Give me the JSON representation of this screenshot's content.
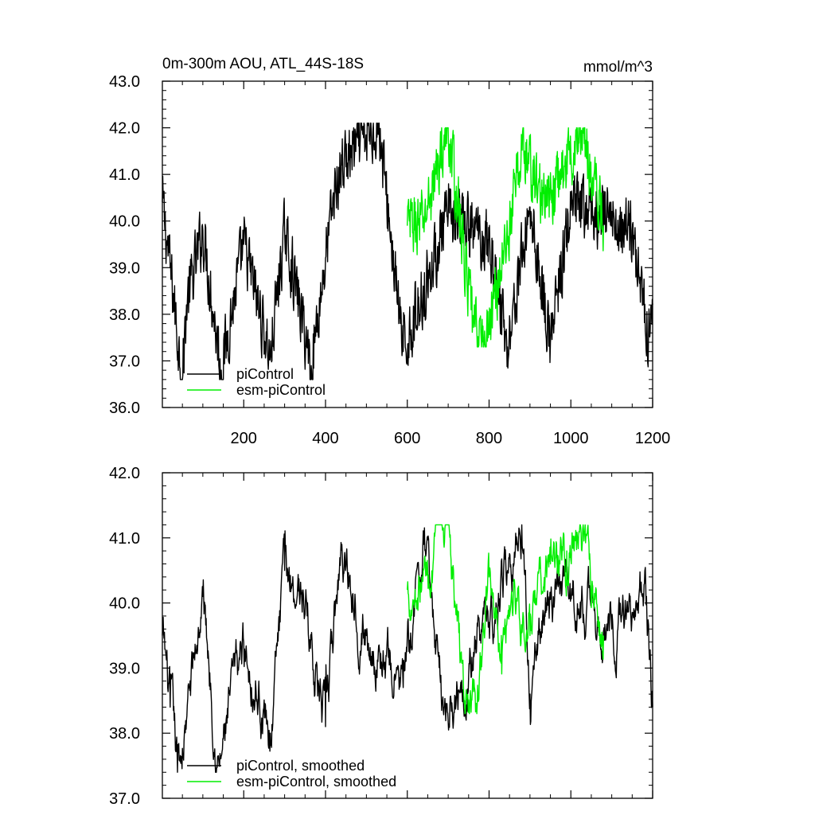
{
  "chart_data": [
    {
      "type": "line",
      "title": "0m-300m AOU, ATL_44S-18S",
      "units": "mmol/m^3",
      "xlim": [
        1,
        1200
      ],
      "ylim": [
        36.0,
        43.0
      ],
      "x_ticks": [
        200,
        400,
        600,
        800,
        1000,
        1200
      ],
      "x_tick_labels": [
        "200",
        "400",
        "600",
        "800",
        "1000",
        "1200"
      ],
      "y_ticks": [
        36.0,
        37.0,
        38.0,
        39.0,
        40.0,
        41.0,
        42.0,
        43.0
      ],
      "y_tick_labels": [
        "36.0",
        "37.0",
        "38.0",
        "39.0",
        "40.0",
        "41.0",
        "42.0",
        "43.0"
      ],
      "legend_position": "bottom-left",
      "series": [
        {
          "name": "piControl",
          "color": "#000000",
          "x_start": 1,
          "x_end": 1200,
          "mean": 39.65,
          "min": 36.6,
          "max": 42.1,
          "anchors": [
            [
              1,
              40.4
            ],
            [
              20,
              39.0
            ],
            [
              50,
              36.6
            ],
            [
              60,
              38.2
            ],
            [
              100,
              39.8
            ],
            [
              145,
              36.8
            ],
            [
              200,
              39.5
            ],
            [
              265,
              37.1
            ],
            [
              300,
              39.8
            ],
            [
              365,
              36.9
            ],
            [
              420,
              40.5
            ],
            [
              440,
              41.2
            ],
            [
              530,
              42.1
            ],
            [
              590,
              37.2
            ],
            [
              700,
              40.1
            ],
            [
              800,
              39.6
            ],
            [
              845,
              37.3
            ],
            [
              900,
              40.3
            ],
            [
              950,
              37.4
            ],
            [
              1000,
              40.3
            ],
            [
              1100,
              40.0
            ],
            [
              1150,
              39.8
            ],
            [
              1190,
              37.6
            ],
            [
              1200,
              38.2
            ]
          ]
        },
        {
          "name": "esm-piControl",
          "color": "#00ee00",
          "x_start": 600,
          "x_end": 1080,
          "mean": 39.75,
          "min": 37.3,
          "max": 42.0,
          "anchors": [
            [
              600,
              39.9
            ],
            [
              640,
              40.0
            ],
            [
              700,
              42.0
            ],
            [
              760,
              37.8
            ],
            [
              790,
              37.35
            ],
            [
              850,
              39.9
            ],
            [
              880,
              41.6
            ],
            [
              940,
              40.3
            ],
            [
              1000,
              41.5
            ],
            [
              1030,
              41.9
            ],
            [
              1080,
              39.9
            ]
          ]
        }
      ]
    },
    {
      "type": "line",
      "xlim": [
        1,
        1200
      ],
      "ylim": [
        37.0,
        42.0
      ],
      "x_ticks": [
        200,
        400,
        600,
        800,
        1000,
        1200
      ],
      "y_ticks": [
        37.0,
        38.0,
        39.0,
        40.0,
        41.0,
        42.0
      ],
      "y_tick_labels": [
        "37.0",
        "38.0",
        "39.0",
        "40.0",
        "41.0",
        "42.0"
      ],
      "legend_position": "bottom-left",
      "series": [
        {
          "name": "piControl, smoothed",
          "color": "#000000",
          "x_start": 1,
          "x_end": 1200,
          "min": 37.4,
          "max": 41.2,
          "anchors": [
            [
              1,
              39.5
            ],
            [
              20,
              38.4
            ],
            [
              38,
              37.4
            ],
            [
              60,
              38.2
            ],
            [
              100,
              40.1
            ],
            [
              140,
              37.5
            ],
            [
              200,
              39.4
            ],
            [
              265,
              38.0
            ],
            [
              300,
              40.5
            ],
            [
              345,
              40.2
            ],
            [
              400,
              38.1
            ],
            [
              440,
              40.9
            ],
            [
              500,
              39.5
            ],
            [
              590,
              38.7
            ],
            [
              640,
              40.9
            ],
            [
              690,
              38.4
            ],
            [
              800,
              39.7
            ],
            [
              880,
              41.2
            ],
            [
              900,
              38.6
            ],
            [
              940,
              40.0
            ],
            [
              1000,
              40.1
            ],
            [
              1100,
              39.6
            ],
            [
              1180,
              40.3
            ],
            [
              1200,
              38.4
            ]
          ]
        },
        {
          "name": "esm-piControl, smoothed",
          "color": "#00ee00",
          "x_start": 600,
          "x_end": 1080,
          "min": 38.3,
          "max": 41.2,
          "anchors": [
            [
              600,
              40.2
            ],
            [
              650,
              40.5
            ],
            [
              700,
              41.2
            ],
            [
              740,
              38.5
            ],
            [
              770,
              38.3
            ],
            [
              800,
              40.4
            ],
            [
              830,
              39.5
            ],
            [
              860,
              40.2
            ],
            [
              900,
              39.5
            ],
            [
              950,
              40.6
            ],
            [
              990,
              40.8
            ],
            [
              1020,
              41.1
            ],
            [
              1080,
              39.5
            ]
          ]
        }
      ]
    }
  ]
}
